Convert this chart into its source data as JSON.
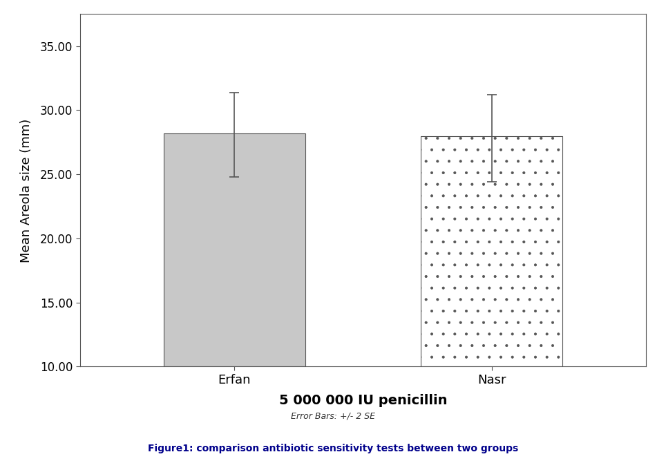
{
  "categories": [
    "Erfan",
    "Nasr"
  ],
  "values": [
    28.2,
    28.0
  ],
  "errors_upper": [
    3.2,
    3.2
  ],
  "errors_lower": [
    3.4,
    3.6
  ],
  "bar_colors": [
    "#c8c8c8",
    "#ffffff"
  ],
  "bar_hatches": [
    "",
    "."
  ],
  "bar_edge_color": "#555555",
  "bar_width": 0.55,
  "xlabel": "5 000 000 IU penicillin",
  "ylabel": "Mean Areola size (mm)",
  "ylim": [
    10.0,
    37.5
  ],
  "yticks": [
    10.0,
    15.0,
    20.0,
    25.0,
    30.0,
    35.0
  ],
  "error_bar_note": "Error Bars: +/- 2 SE",
  "figure_caption": "Figure1: comparison antibiotic sensitivity tests between two groups",
  "xlabel_fontsize": 14,
  "ylabel_fontsize": 13,
  "tick_label_fontsize": 12,
  "category_fontsize": 13,
  "caption_fontsize": 10,
  "note_fontsize": 9,
  "background_color": "#ffffff",
  "plot_bg_color": "#ffffff",
  "error_capsize": 5,
  "error_linewidth": 1.2,
  "error_color": "#555555",
  "caption_color": "#00008B",
  "note_color": "#333333",
  "x_positions": [
    1.0,
    2.0
  ],
  "xlim": [
    0.4,
    2.6
  ]
}
